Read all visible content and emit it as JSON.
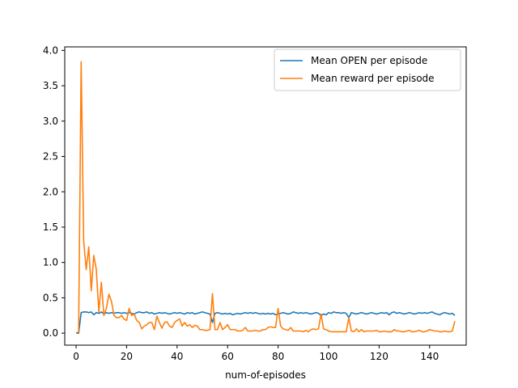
{
  "chart_data": {
    "type": "line",
    "title": "",
    "xlabel": "num-of-episodes",
    "ylabel": "",
    "xlim": [
      -4.5,
      154.5
    ],
    "ylim": [
      -0.17,
      4.05
    ],
    "x_ticks": [
      0,
      20,
      40,
      60,
      80,
      100,
      120,
      140
    ],
    "y_ticks": [
      0.0,
      0.5,
      1.0,
      1.5,
      2.0,
      2.5,
      3.0,
      3.5,
      4.0
    ],
    "x_tick_labels": [
      "0",
      "20",
      "40",
      "60",
      "80",
      "100",
      "120",
      "140"
    ],
    "y_tick_labels": [
      "0.0",
      "0.5",
      "1.0",
      "1.5",
      "2.0",
      "2.5",
      "3.0",
      "3.5",
      "4.0"
    ],
    "grid": false,
    "legend_position": "top-right",
    "series": [
      {
        "name": "Mean OPEN per episode",
        "color": "#1f77b4",
        "points": [
          [
            0,
            0.0
          ],
          [
            1,
            0.0
          ],
          [
            2,
            0.29
          ],
          [
            3,
            0.3
          ],
          [
            4,
            0.3
          ],
          [
            5,
            0.29
          ],
          [
            6,
            0.3
          ],
          [
            7,
            0.26
          ],
          [
            8,
            0.29
          ],
          [
            9,
            0.28
          ],
          [
            10,
            0.3
          ],
          [
            11,
            0.27
          ],
          [
            12,
            0.29
          ],
          [
            13,
            0.28
          ],
          [
            14,
            0.29
          ],
          [
            15,
            0.28
          ],
          [
            16,
            0.29
          ],
          [
            17,
            0.29
          ],
          [
            18,
            0.28
          ],
          [
            19,
            0.29
          ],
          [
            20,
            0.28
          ],
          [
            21,
            0.29
          ],
          [
            22,
            0.28
          ],
          [
            23,
            0.27
          ],
          [
            24,
            0.29
          ],
          [
            25,
            0.3
          ],
          [
            26,
            0.29
          ],
          [
            27,
            0.29
          ],
          [
            28,
            0.3
          ],
          [
            29,
            0.28
          ],
          [
            30,
            0.29
          ],
          [
            31,
            0.27
          ],
          [
            32,
            0.28
          ],
          [
            33,
            0.29
          ],
          [
            34,
            0.28
          ],
          [
            35,
            0.29
          ],
          [
            36,
            0.28
          ],
          [
            37,
            0.27
          ],
          [
            38,
            0.28
          ],
          [
            39,
            0.29
          ],
          [
            40,
            0.28
          ],
          [
            41,
            0.29
          ],
          [
            42,
            0.28
          ],
          [
            43,
            0.27
          ],
          [
            44,
            0.29
          ],
          [
            45,
            0.28
          ],
          [
            46,
            0.29
          ],
          [
            47,
            0.27
          ],
          [
            48,
            0.28
          ],
          [
            49,
            0.29
          ],
          [
            50,
            0.3
          ],
          [
            51,
            0.29
          ],
          [
            52,
            0.28
          ],
          [
            53,
            0.27
          ],
          [
            54,
            0.15
          ],
          [
            55,
            0.28
          ],
          [
            56,
            0.29
          ],
          [
            57,
            0.28
          ],
          [
            58,
            0.27
          ],
          [
            59,
            0.28
          ],
          [
            60,
            0.27
          ],
          [
            61,
            0.28
          ],
          [
            62,
            0.26
          ],
          [
            63,
            0.27
          ],
          [
            64,
            0.28
          ],
          [
            65,
            0.27
          ],
          [
            66,
            0.28
          ],
          [
            67,
            0.29
          ],
          [
            68,
            0.28
          ],
          [
            69,
            0.29
          ],
          [
            70,
            0.28
          ],
          [
            71,
            0.29
          ],
          [
            72,
            0.28
          ],
          [
            73,
            0.27
          ],
          [
            74,
            0.28
          ],
          [
            75,
            0.27
          ],
          [
            76,
            0.28
          ],
          [
            77,
            0.27
          ],
          [
            78,
            0.28
          ],
          [
            79,
            0.26
          ],
          [
            80,
            0.27
          ],
          [
            81,
            0.28
          ],
          [
            82,
            0.29
          ],
          [
            83,
            0.28
          ],
          [
            84,
            0.27
          ],
          [
            85,
            0.28
          ],
          [
            86,
            0.3
          ],
          [
            87,
            0.29
          ],
          [
            88,
            0.28
          ],
          [
            89,
            0.29
          ],
          [
            90,
            0.28
          ],
          [
            91,
            0.29
          ],
          [
            92,
            0.28
          ],
          [
            93,
            0.27
          ],
          [
            94,
            0.28
          ],
          [
            95,
            0.29
          ],
          [
            96,
            0.28
          ],
          [
            97,
            0.25
          ],
          [
            98,
            0.27
          ],
          [
            99,
            0.26
          ],
          [
            100,
            0.29
          ],
          [
            101,
            0.28
          ],
          [
            102,
            0.3
          ],
          [
            103,
            0.29
          ],
          [
            104,
            0.29
          ],
          [
            105,
            0.28
          ],
          [
            106,
            0.29
          ],
          [
            107,
            0.28
          ],
          [
            108,
            0.22
          ],
          [
            109,
            0.29
          ],
          [
            110,
            0.28
          ],
          [
            111,
            0.27
          ],
          [
            112,
            0.28
          ],
          [
            113,
            0.29
          ],
          [
            114,
            0.28
          ],
          [
            115,
            0.27
          ],
          [
            116,
            0.28
          ],
          [
            117,
            0.29
          ],
          [
            118,
            0.28
          ],
          [
            119,
            0.27
          ],
          [
            120,
            0.28
          ],
          [
            121,
            0.29
          ],
          [
            122,
            0.28
          ],
          [
            123,
            0.29
          ],
          [
            124,
            0.26
          ],
          [
            125,
            0.29
          ],
          [
            126,
            0.3
          ],
          [
            127,
            0.28
          ],
          [
            128,
            0.29
          ],
          [
            129,
            0.28
          ],
          [
            130,
            0.27
          ],
          [
            131,
            0.28
          ],
          [
            132,
            0.29
          ],
          [
            133,
            0.28
          ],
          [
            134,
            0.27
          ],
          [
            135,
            0.28
          ],
          [
            136,
            0.29
          ],
          [
            137,
            0.28
          ],
          [
            138,
            0.29
          ],
          [
            139,
            0.28
          ],
          [
            140,
            0.29
          ],
          [
            141,
            0.3
          ],
          [
            142,
            0.28
          ],
          [
            143,
            0.27
          ],
          [
            144,
            0.26
          ],
          [
            145,
            0.28
          ],
          [
            146,
            0.29
          ],
          [
            147,
            0.28
          ],
          [
            148,
            0.27
          ],
          [
            149,
            0.28
          ],
          [
            150,
            0.25
          ]
        ]
      },
      {
        "name": "Mean reward per episode",
        "color": "#ff7f0e",
        "points": [
          [
            0,
            0.0
          ],
          [
            1,
            0.02
          ],
          [
            2,
            3.84
          ],
          [
            3,
            1.3
          ],
          [
            4,
            0.9
          ],
          [
            5,
            1.22
          ],
          [
            6,
            0.6
          ],
          [
            7,
            1.1
          ],
          [
            8,
            0.9
          ],
          [
            9,
            0.3
          ],
          [
            10,
            0.72
          ],
          [
            11,
            0.25
          ],
          [
            12,
            0.35
          ],
          [
            13,
            0.55
          ],
          [
            14,
            0.45
          ],
          [
            15,
            0.25
          ],
          [
            16,
            0.22
          ],
          [
            17,
            0.22
          ],
          [
            18,
            0.25
          ],
          [
            19,
            0.2
          ],
          [
            20,
            0.18
          ],
          [
            21,
            0.35
          ],
          [
            22,
            0.25
          ],
          [
            23,
            0.27
          ],
          [
            24,
            0.18
          ],
          [
            25,
            0.15
          ],
          [
            26,
            0.06
          ],
          [
            27,
            0.1
          ],
          [
            28,
            0.12
          ],
          [
            29,
            0.15
          ],
          [
            30,
            0.15
          ],
          [
            31,
            0.05
          ],
          [
            32,
            0.24
          ],
          [
            33,
            0.15
          ],
          [
            34,
            0.07
          ],
          [
            35,
            0.15
          ],
          [
            36,
            0.16
          ],
          [
            37,
            0.1
          ],
          [
            38,
            0.08
          ],
          [
            39,
            0.15
          ],
          [
            40,
            0.18
          ],
          [
            41,
            0.2
          ],
          [
            42,
            0.1
          ],
          [
            43,
            0.15
          ],
          [
            44,
            0.1
          ],
          [
            45,
            0.12
          ],
          [
            46,
            0.08
          ],
          [
            47,
            0.11
          ],
          [
            48,
            0.1
          ],
          [
            49,
            0.05
          ],
          [
            50,
            0.05
          ],
          [
            51,
            0.04
          ],
          [
            52,
            0.04
          ],
          [
            53,
            0.05
          ],
          [
            54,
            0.56
          ],
          [
            55,
            0.05
          ],
          [
            56,
            0.05
          ],
          [
            57,
            0.15
          ],
          [
            58,
            0.05
          ],
          [
            59,
            0.08
          ],
          [
            60,
            0.12
          ],
          [
            61,
            0.05
          ],
          [
            62,
            0.05
          ],
          [
            63,
            0.05
          ],
          [
            64,
            0.03
          ],
          [
            65,
            0.03
          ],
          [
            66,
            0.04
          ],
          [
            67,
            0.08
          ],
          [
            68,
            0.03
          ],
          [
            69,
            0.03
          ],
          [
            70,
            0.03
          ],
          [
            71,
            0.04
          ],
          [
            72,
            0.03
          ],
          [
            73,
            0.03
          ],
          [
            74,
            0.05
          ],
          [
            75,
            0.05
          ],
          [
            76,
            0.08
          ],
          [
            77,
            0.09
          ],
          [
            78,
            0.08
          ],
          [
            79,
            0.08
          ],
          [
            80,
            0.35
          ],
          [
            81,
            0.1
          ],
          [
            82,
            0.06
          ],
          [
            83,
            0.05
          ],
          [
            84,
            0.04
          ],
          [
            85,
            0.08
          ],
          [
            86,
            0.03
          ],
          [
            87,
            0.03
          ],
          [
            88,
            0.03
          ],
          [
            89,
            0.03
          ],
          [
            90,
            0.02
          ],
          [
            91,
            0.04
          ],
          [
            92,
            0.02
          ],
          [
            93,
            0.05
          ],
          [
            94,
            0.06
          ],
          [
            95,
            0.05
          ],
          [
            96,
            0.06
          ],
          [
            97,
            0.27
          ],
          [
            98,
            0.06
          ],
          [
            99,
            0.05
          ],
          [
            100,
            0.03
          ],
          [
            101,
            0.02
          ],
          [
            102,
            0.02
          ],
          [
            103,
            0.02
          ],
          [
            104,
            0.02
          ],
          [
            105,
            0.02
          ],
          [
            106,
            0.02
          ],
          [
            107,
            0.02
          ],
          [
            108,
            0.22
          ],
          [
            109,
            0.03
          ],
          [
            110,
            0.02
          ],
          [
            111,
            0.06
          ],
          [
            112,
            0.02
          ],
          [
            113,
            0.05
          ],
          [
            114,
            0.02
          ],
          [
            115,
            0.03
          ],
          [
            116,
            0.03
          ],
          [
            117,
            0.03
          ],
          [
            118,
            0.03
          ],
          [
            119,
            0.04
          ],
          [
            120,
            0.02
          ],
          [
            121,
            0.02
          ],
          [
            122,
            0.03
          ],
          [
            123,
            0.02
          ],
          [
            124,
            0.02
          ],
          [
            125,
            0.02
          ],
          [
            126,
            0.05
          ],
          [
            127,
            0.03
          ],
          [
            128,
            0.03
          ],
          [
            129,
            0.02
          ],
          [
            130,
            0.02
          ],
          [
            131,
            0.03
          ],
          [
            132,
            0.04
          ],
          [
            133,
            0.02
          ],
          [
            134,
            0.02
          ],
          [
            135,
            0.03
          ],
          [
            136,
            0.04
          ],
          [
            137,
            0.02
          ],
          [
            138,
            0.02
          ],
          [
            139,
            0.03
          ],
          [
            140,
            0.05
          ],
          [
            141,
            0.04
          ],
          [
            142,
            0.03
          ],
          [
            143,
            0.03
          ],
          [
            144,
            0.02
          ],
          [
            145,
            0.02
          ],
          [
            146,
            0.03
          ],
          [
            147,
            0.02
          ],
          [
            148,
            0.02
          ],
          [
            149,
            0.03
          ],
          [
            150,
            0.17
          ]
        ]
      }
    ]
  }
}
